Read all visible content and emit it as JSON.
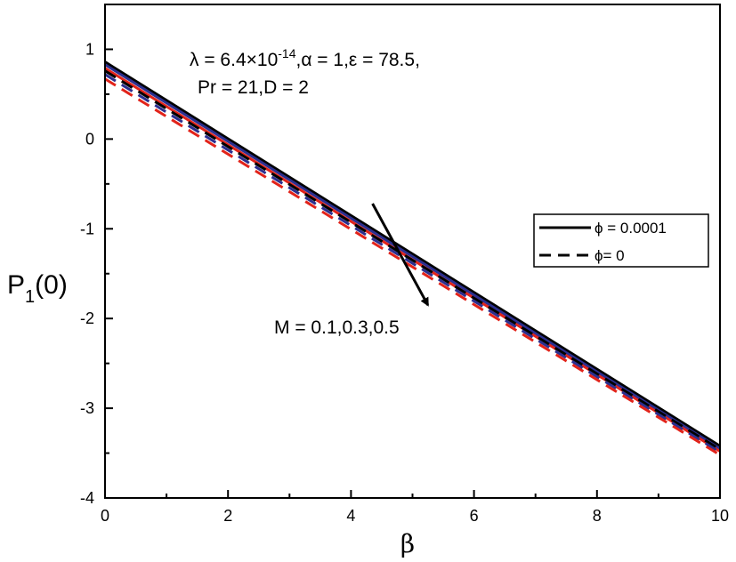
{
  "chart_data": {
    "type": "line",
    "title": "",
    "xlabel": "β",
    "ylabel": {
      "main": "P",
      "sub": "1",
      "suffix": "(0)"
    },
    "xlim": [
      0,
      10
    ],
    "ylim": [
      -4,
      1.5
    ],
    "x_ticks": [
      0,
      2,
      4,
      6,
      8,
      10
    ],
    "x_tick_labels": [
      "0",
      "2",
      "4",
      "6",
      "8",
      "10"
    ],
    "y_ticks": [
      1,
      0,
      -1,
      -2,
      -3,
      -4
    ],
    "y_tick_labels": [
      "1",
      "0",
      "-1",
      "-2",
      "-3",
      "-4"
    ],
    "grid": false,
    "legend": {
      "placement": "right",
      "entries": [
        {
          "label": "ϕ = 0.0001",
          "style": "solid",
          "color": "#000000"
        },
        {
          "label": "ϕ= 0",
          "style": "dashed",
          "color": "#000000"
        }
      ]
    },
    "series": [
      {
        "phi": "0.0001",
        "M": "0.1",
        "style": "solid",
        "color": "#000000",
        "x": [
          0,
          10
        ],
        "y": [
          0.86,
          -3.42
        ]
      },
      {
        "phi": "0.0001",
        "M": "0.3",
        "style": "solid",
        "color": "#2b2f8f",
        "x": [
          0,
          10
        ],
        "y": [
          0.83,
          -3.45
        ]
      },
      {
        "phi": "0.0001",
        "M": "0.5",
        "style": "solid",
        "color": "#e2231a",
        "x": [
          0,
          10
        ],
        "y": [
          0.79,
          -3.48
        ]
      },
      {
        "phi": "0",
        "M": "0.1",
        "style": "dashed",
        "color": "#000000",
        "x": [
          0,
          10
        ],
        "y": [
          0.76,
          -3.46
        ]
      },
      {
        "phi": "0",
        "M": "0.3",
        "style": "dashed",
        "color": "#2b2f8f",
        "x": [
          0,
          10
        ],
        "y": [
          0.72,
          -3.49
        ]
      },
      {
        "phi": "0",
        "M": "0.5",
        "style": "dashed",
        "color": "#e2231a",
        "x": [
          0,
          10
        ],
        "y": [
          0.67,
          -3.52
        ]
      }
    ],
    "annotations": {
      "params_line1": {
        "parts": [
          {
            "t": "λ = 6.4×10",
            "sup": false
          },
          {
            "t": "-14",
            "sup": true
          },
          {
            "t": ",α = 1,ε = 78.5,",
            "sup": false
          }
        ]
      },
      "params_line2": "Pr = 21,D = 2",
      "m_label": "M = 0.1,0.3,0.5",
      "arrow": {
        "from": [
          4.35,
          -0.72
        ],
        "to": [
          5.25,
          -1.85
        ]
      }
    }
  }
}
